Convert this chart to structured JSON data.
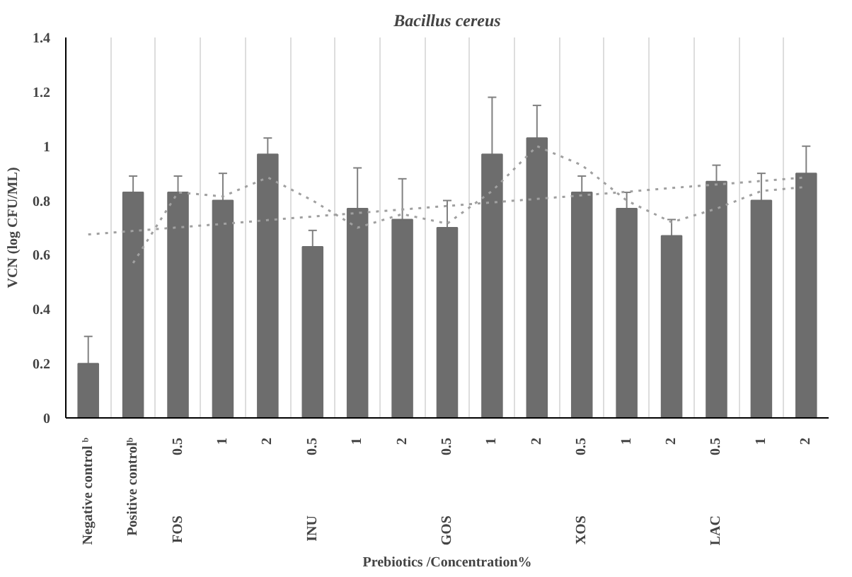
{
  "chart_data": {
    "type": "bar",
    "title": "Bacillus cereus",
    "xlabel": "Prebiotics /Concentration%",
    "ylabel": "VCN (log CFU/ML)",
    "categories": [
      "Negative control ᵇ",
      "Positive controlᵇ",
      "0.5",
      "1",
      "2",
      "0.5",
      "1",
      "2",
      "0.5",
      "1",
      "2",
      "0.5",
      "1",
      "2",
      "0.5",
      "1",
      "2"
    ],
    "annotations": [
      "FOS",
      "INU",
      "GOS",
      "XOS",
      "LAC"
    ],
    "series": [
      {
        "type": "bar",
        "color": "#6d6d6d",
        "values": [
          0.2,
          0.83,
          0.83,
          0.8,
          0.97,
          0.63,
          0.77,
          0.73,
          0.7,
          0.97,
          1.03,
          0.83,
          0.77,
          0.67,
          0.87,
          0.8,
          0.9
        ],
        "errors": [
          0.1,
          0.06,
          0.06,
          0.1,
          0.06,
          0.06,
          0.15,
          0.15,
          0.1,
          0.21,
          0.12,
          0.06,
          0.06,
          0.06,
          0.06,
          0.1,
          0.1
        ]
      },
      {
        "type": "line",
        "color": "#a0a0a0",
        "line_style": "dotted",
        "values": [
          null,
          0.57,
          0.83,
          0.815,
          0.885,
          0.8,
          0.7,
          0.75,
          0.715,
          0.835,
          1.0,
          0.93,
          0.8,
          0.72,
          0.77,
          0.835,
          0.85
        ]
      },
      {
        "type": "line",
        "color": "#a0a0a0",
        "line_style": "dotted",
        "values": [
          0.675,
          0.688,
          0.701,
          0.714,
          0.728,
          0.741,
          0.754,
          0.767,
          0.78,
          0.793,
          0.806,
          0.819,
          0.832,
          0.846,
          0.859,
          0.872,
          0.885
        ]
      }
    ],
    "ylim": [
      0,
      1.4
    ],
    "yticks": [
      0,
      0.2,
      0.4,
      0.6,
      0.8,
      1,
      1.2,
      1.4
    ],
    "grid": "x"
  }
}
